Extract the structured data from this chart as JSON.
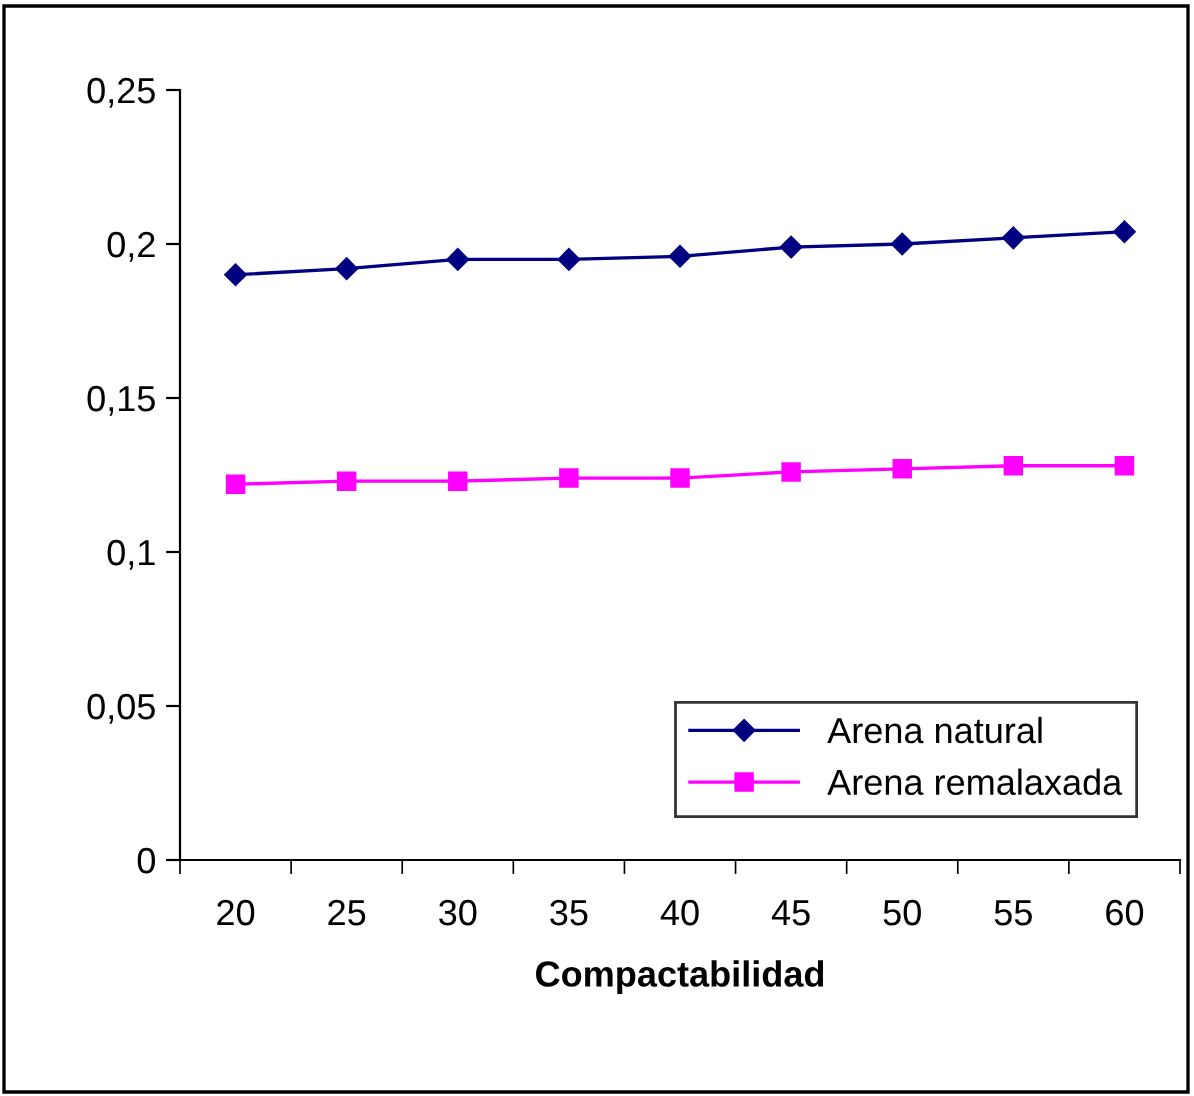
{
  "chart_data": {
    "type": "line",
    "xlabel": "Compactabilidad",
    "categories": [
      "20",
      "25",
      "30",
      "35",
      "40",
      "45",
      "50",
      "55",
      "60"
    ],
    "series": [
      {
        "name": "Arena natural",
        "color": "#000080",
        "marker": "diamond",
        "values": [
          0.19,
          0.192,
          0.195,
          0.195,
          0.196,
          0.199,
          0.2,
          0.202,
          0.204
        ]
      },
      {
        "name": "Arena remalaxada",
        "color": "#ff00ff",
        "marker": "square",
        "values": [
          0.122,
          0.123,
          0.123,
          0.124,
          0.124,
          0.126,
          0.127,
          0.128,
          0.128
        ]
      }
    ],
    "ylim": [
      0,
      0.25
    ],
    "yticks": [
      {
        "value": 0,
        "label": "0"
      },
      {
        "value": 0.05,
        "label": "0,05"
      },
      {
        "value": 0.1,
        "label": "0,1"
      },
      {
        "value": 0.15,
        "label": "0,15"
      },
      {
        "value": 0.2,
        "label": "0,2"
      },
      {
        "value": 0.25,
        "label": "0,25"
      }
    ],
    "grid": false,
    "legend": "bottom right",
    "line_style": "solid"
  }
}
